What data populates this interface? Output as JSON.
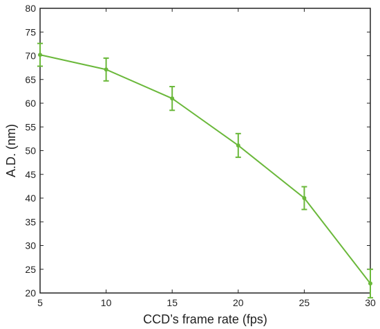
{
  "chart_data": {
    "type": "line",
    "title": "",
    "xlabel": "CCD’s frame rate (fps)",
    "ylabel": "A.D. (nm)",
    "xlim": [
      5,
      30
    ],
    "ylim": [
      20,
      80
    ],
    "xticks": [
      5,
      10,
      15,
      20,
      25,
      30
    ],
    "yticks": [
      20,
      25,
      30,
      35,
      40,
      45,
      50,
      55,
      60,
      65,
      70,
      75,
      80
    ],
    "grid": false,
    "legend": "none",
    "series": [
      {
        "x": [
          5,
          10,
          15,
          20,
          25,
          30
        ],
        "y": [
          70.2,
          67.1,
          61.0,
          51.1,
          40.0,
          22.0
        ],
        "error": [
          2.4,
          2.4,
          2.5,
          2.5,
          2.4,
          3.0
        ],
        "color": "#6ab83a"
      }
    ]
  }
}
